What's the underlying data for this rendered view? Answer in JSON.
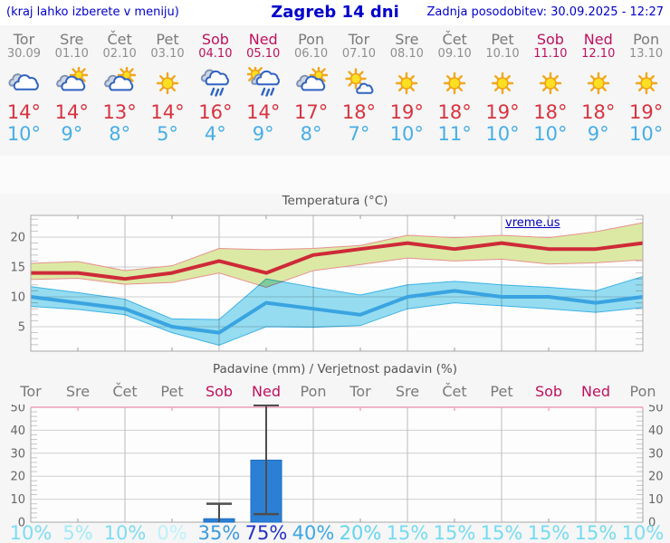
{
  "header": {
    "left_note": "(kraj lahko izberete v meniju)",
    "title": "Zagreb 14 dni",
    "updated": "Zadnja posodobitev: 30.09.2025 - 12:27"
  },
  "colors": {
    "link_blue": "#0000cc",
    "weekday_gray": "#7a7a7a",
    "weekend_red": "#c0105e",
    "high_temp_red": "#d93240",
    "low_temp_blue": "#46aee9",
    "max_line": "#ce2a38",
    "min_line": "#3aa4e1",
    "max_band_fill": "#dce9a4",
    "max_band_edge": "#e89090",
    "min_band_fill": "#96def2",
    "min_band_edge": "#3fb4e8",
    "bar_blue": "#2b80d6",
    "grid_gray": "#bcbcbc",
    "axis_gray": "#a8a8a8",
    "precip_top_pink": "#ec9fb8"
  },
  "forecast": {
    "days": [
      {
        "name": "Tor",
        "date": "30.09",
        "icon": "cloudy",
        "high": "14°",
        "low": "10°",
        "weekend": false
      },
      {
        "name": "Sre",
        "date": "01.10",
        "icon": "partly",
        "high": "14°",
        "low": "9°",
        "weekend": false
      },
      {
        "name": "Čet",
        "date": "02.10",
        "icon": "partly",
        "high": "13°",
        "low": "8°",
        "weekend": false
      },
      {
        "name": "Pet",
        "date": "03.10",
        "icon": "sunny",
        "high": "14°",
        "low": "5°",
        "weekend": false
      },
      {
        "name": "Sob",
        "date": "04.10",
        "icon": "rain",
        "high": "16°",
        "low": "4°",
        "weekend": true
      },
      {
        "name": "Ned",
        "date": "05.10",
        "icon": "sun-rain",
        "high": "14°",
        "low": "9°",
        "weekend": true
      },
      {
        "name": "Pon",
        "date": "06.10",
        "icon": "partly",
        "high": "17°",
        "low": "8°",
        "weekend": false
      },
      {
        "name": "Tor",
        "date": "07.10",
        "icon": "mostly-sunny",
        "high": "18°",
        "low": "7°",
        "weekend": false
      },
      {
        "name": "Sre",
        "date": "08.10",
        "icon": "sunny",
        "high": "19°",
        "low": "10°",
        "weekend": false
      },
      {
        "name": "Čet",
        "date": "09.10",
        "icon": "sunny",
        "high": "18°",
        "low": "11°",
        "weekend": false
      },
      {
        "name": "Pet",
        "date": "10.10",
        "icon": "sunny",
        "high": "19°",
        "low": "10°",
        "weekend": false
      },
      {
        "name": "Sob",
        "date": "11.10",
        "icon": "sunny",
        "high": "18°",
        "low": "10°",
        "weekend": true
      },
      {
        "name": "Ned",
        "date": "12.10",
        "icon": "sunny",
        "high": "18°",
        "low": "9°",
        "weekend": true
      },
      {
        "name": "Pon",
        "date": "13.10",
        "icon": "sunny",
        "high": "19°",
        "low": "10°",
        "weekend": false
      }
    ]
  },
  "chart_data": [
    {
      "type": "line",
      "title": "Temperatura (°C)",
      "watermark": "vreme.us",
      "ylim": [
        1,
        23.6
      ],
      "yticks": [
        5,
        10,
        15,
        20
      ],
      "grid": true,
      "series": [
        {
          "name": "max-temp",
          "color": "#ce2a38",
          "values": [
            14,
            14,
            13,
            14,
            16,
            14,
            17,
            18,
            19,
            18,
            19,
            18,
            18,
            19
          ]
        },
        {
          "name": "min-temp",
          "color": "#3aa4e1",
          "values": [
            10,
            9,
            8,
            5,
            4,
            9,
            8,
            7,
            10,
            11,
            10,
            10,
            9,
            10
          ]
        }
      ],
      "bands": [
        {
          "name": "max-temp-range",
          "fill": "#dce9a4",
          "edge": "#e89090",
          "upper": [
            15.6,
            15.9,
            14.4,
            15.2,
            18.1,
            17.9,
            18.1,
            18.6,
            20.3,
            19.9,
            20.3,
            19.9,
            20.9,
            22.4
          ],
          "lower": [
            12.9,
            13.1,
            12.1,
            12.4,
            14.0,
            11.6,
            14.4,
            15.4,
            16.5,
            16.0,
            16.3,
            15.5,
            15.7,
            16.2
          ]
        },
        {
          "name": "min-temp-range",
          "fill": "#96def2",
          "edge": "#3fb4e8",
          "upper": [
            11.7,
            10.7,
            9.6,
            6.3,
            6.2,
            13.0,
            11.6,
            10.3,
            12.0,
            12.6,
            12.0,
            11.6,
            11.0,
            13.4
          ],
          "lower": [
            8.4,
            7.9,
            7.0,
            4.0,
            1.9,
            5.0,
            4.9,
            5.2,
            8.0,
            9.0,
            8.5,
            8.0,
            7.4,
            8.2
          ]
        }
      ]
    },
    {
      "type": "bar",
      "title": "Padavine (mm) / Verjetnost padavin (%)",
      "day_labels": [
        "Tor",
        "Sre",
        "Čet",
        "Pet",
        "Sob",
        "Ned",
        "Pon",
        "Tor",
        "Sre",
        "Čet",
        "Pet",
        "Sob",
        "Ned",
        "Pon"
      ],
      "weekend": [
        false,
        false,
        false,
        false,
        true,
        true,
        false,
        false,
        false,
        false,
        false,
        true,
        true,
        false
      ],
      "ylim": [
        0,
        50
      ],
      "yticks": [
        0,
        10,
        20,
        30,
        40,
        50
      ],
      "bar_color": "#2b80d6",
      "precip_mm": [
        0,
        0,
        0,
        0,
        1.5,
        27,
        0,
        0,
        0,
        0,
        0,
        0,
        0,
        0
      ],
      "whiskers": [
        {
          "day_index": 4,
          "low": 0,
          "high": 8
        },
        {
          "day_index": 5,
          "low": 3.5,
          "high": 51
        }
      ],
      "probability": [
        "10%",
        "5%",
        "10%",
        "0%",
        "35%",
        "75%",
        "40%",
        "20%",
        "15%",
        "15%",
        "15%",
        "15%",
        "15%",
        "10%"
      ],
      "probability_colors": [
        "#7BDDF5",
        "#A2E9F9",
        "#7BDDF5",
        "#BDF1FB",
        "#3C9ADF",
        "#2531C9",
        "#3BA7E7",
        "#63D5F1",
        "#74DBF3",
        "#74DBF3",
        "#74DBF3",
        "#74DBF3",
        "#74DBF3",
        "#7BDDF5"
      ]
    }
  ]
}
